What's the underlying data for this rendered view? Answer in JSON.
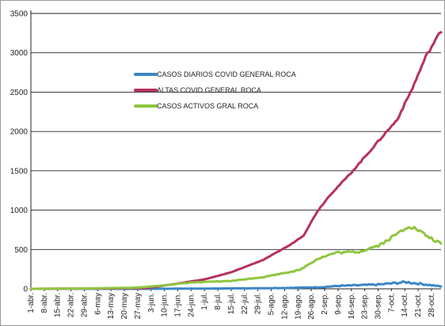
{
  "chart_data": {
    "type": "line",
    "title": "",
    "xlabel": "",
    "ylabel": "",
    "ylim": [
      0,
      3500
    ],
    "yticks": [
      0,
      500,
      1000,
      1500,
      2000,
      2500,
      3000,
      3500
    ],
    "grid": true,
    "legend_placement": "upper-left-center",
    "x_tick_labels": [
      "1-abr.",
      "8-abr.",
      "15-abr.",
      "22-abr.",
      "29-abr.",
      "6-may",
      "13-may",
      "20-may",
      "27-may",
      "3-jun.",
      "10-jun.",
      "17-jun.",
      "24-jun.",
      "1-jul.",
      "8-jul.",
      "15-jul.",
      "22-jul.",
      "29-jul.",
      "5-ago.",
      "12-ago.",
      "19-ago.",
      "26-ago.",
      "2-sep.",
      "9-sep.",
      "16-sep.",
      "23-sep.",
      "30-sep.",
      "7-oct.",
      "14-oct.",
      "21-oct.",
      "28-oct."
    ],
    "x_day_start": "1-abr.",
    "x_day_end": "2-nov.",
    "series": [
      {
        "name": "CASOS DIARIOS COVID GENERAL ROCA",
        "color": "#3b86c6",
        "points": [
          [
            "1-abr.",
            0
          ],
          [
            "1-jun.",
            0
          ],
          [
            "1-jul.",
            3
          ],
          [
            "1-ago.",
            8
          ],
          [
            "15-ago.",
            12
          ],
          [
            "1-sep.",
            22
          ],
          [
            "10-sep.",
            38
          ],
          [
            "20-sep.",
            45
          ],
          [
            "1-oct.",
            55
          ],
          [
            "10-oct.",
            75
          ],
          [
            "15-oct.",
            85
          ],
          [
            "20-oct.",
            70
          ],
          [
            "25-oct.",
            55
          ],
          [
            "2-nov.",
            30
          ]
        ]
      },
      {
        "name": "ALTAS COVID GENERAL ROCA",
        "color": "#b5325a",
        "points": [
          [
            "1-abr.",
            0
          ],
          [
            "15-may",
            5
          ],
          [
            "1-jun.",
            10
          ],
          [
            "15-jun.",
            60
          ],
          [
            "1-jul.",
            120
          ],
          [
            "15-jul.",
            210
          ],
          [
            "1-ago.",
            370
          ],
          [
            "15-ago.",
            560
          ],
          [
            "22-ago.",
            680
          ],
          [
            "29-ago.",
            980
          ],
          [
            "5-sep.",
            1200
          ],
          [
            "15-sep.",
            1450
          ],
          [
            "1-oct.",
            1900
          ],
          [
            "10-oct.",
            2150
          ],
          [
            "18-oct.",
            2550
          ],
          [
            "25-oct.",
            2950
          ],
          [
            "2-nov.",
            3280
          ]
        ]
      },
      {
        "name": "CASOS ACTIVOS GRAL ROCA",
        "color": "#8dc63f",
        "points": [
          [
            "1-abr.",
            0
          ],
          [
            "1-may",
            5
          ],
          [
            "27-may",
            15
          ],
          [
            "10-jun.",
            45
          ],
          [
            "24-jun.",
            80
          ],
          [
            "15-jul.",
            100
          ],
          [
            "1-ago.",
            150
          ],
          [
            "20-ago.",
            240
          ],
          [
            "29-ago.",
            380
          ],
          [
            "8-sep.",
            460
          ],
          [
            "20-sep.",
            470
          ],
          [
            "1-oct.",
            560
          ],
          [
            "7-oct.",
            650
          ],
          [
            "16-oct.",
            800
          ],
          [
            "20-oct.",
            760
          ],
          [
            "27-oct.",
            650
          ],
          [
            "2-nov.",
            570
          ]
        ]
      }
    ]
  }
}
